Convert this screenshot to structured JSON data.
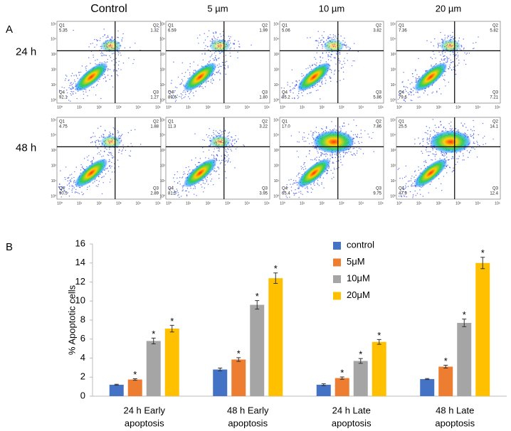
{
  "panel_labels": [
    "A",
    "B"
  ],
  "flow": {
    "columns": [
      "Control",
      "5 µm",
      "10 µm",
      "20 µm"
    ],
    "axis_ticks": [
      "10⁰",
      "10¹",
      "10²",
      "10³",
      "10⁴",
      "10⁵"
    ],
    "quadrant_names": [
      "Q1",
      "Q2",
      "Q3",
      "Q4"
    ],
    "rows": [
      {
        "label": "24 h",
        "plots": [
          {
            "Q1": "5.35",
            "Q2": "1.32",
            "Q3": "1.27",
            "Q4": "92.1"
          },
          {
            "Q1": "6.59",
            "Q2": "1.99",
            "Q3": "1.80",
            "Q4": "89.6"
          },
          {
            "Q1": "5.06",
            "Q2": "3.82",
            "Q3": "5.86",
            "Q4": "85.2"
          },
          {
            "Q1": "7.36",
            "Q2": "5.82",
            "Q3": "7.21",
            "Q4": "79.6"
          }
        ]
      },
      {
        "label": "48 h",
        "plots": [
          {
            "Q1": "4.75",
            "Q2": "1.88",
            "Q3": "2.89",
            "Q4": "90.5"
          },
          {
            "Q1": "11.3",
            "Q2": "3.22",
            "Q3": "3.95",
            "Q4": "81.5"
          },
          {
            "Q1": "17.0",
            "Q2": "7.86",
            "Q3": "9.75",
            "Q4": "65.4"
          },
          {
            "Q1": "25.5",
            "Q2": "14.1",
            "Q3": "12.4",
            "Q4": "47.9"
          }
        ]
      }
    ]
  },
  "chart_data": {
    "type": "bar",
    "y_label": "% Apoptotic cells",
    "categories": [
      [
        "24 h Early",
        "apoptosis"
      ],
      [
        "48 h Early",
        "apoptosis"
      ],
      [
        "24 h Late",
        "apoptosis"
      ],
      [
        "48 h Late",
        "apoptosis"
      ]
    ],
    "significance_marker": "*",
    "series": [
      {
        "name": "control",
        "color": "#4472c4",
        "values": [
          1.2,
          2.8,
          1.2,
          1.8
        ],
        "errors": [
          0.05,
          0.15,
          0.1,
          0.05
        ],
        "significant": false
      },
      {
        "name": "5μM",
        "color": "#ed7d31",
        "values": [
          1.75,
          3.85,
          1.9,
          3.1
        ],
        "errors": [
          0.08,
          0.2,
          0.12,
          0.15
        ],
        "significant": true
      },
      {
        "name": "10μM",
        "color": "#a5a5a5",
        "values": [
          5.8,
          9.6,
          3.7,
          7.7
        ],
        "errors": [
          0.3,
          0.45,
          0.25,
          0.4
        ],
        "significant": true
      },
      {
        "name": "20μM",
        "color": "#ffc000",
        "values": [
          7.1,
          12.4,
          5.7,
          14.0
        ],
        "errors": [
          0.35,
          0.55,
          0.25,
          0.6
        ],
        "significant": true
      }
    ],
    "ylim": [
      0,
      16
    ],
    "yticks": [
      0,
      2,
      4,
      6,
      8,
      10,
      12,
      14,
      16
    ],
    "grid": false,
    "legend": "top-right"
  }
}
